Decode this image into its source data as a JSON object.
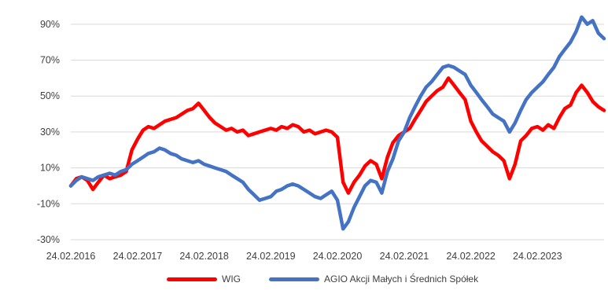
{
  "chart_data": {
    "type": "line",
    "title": "",
    "xlabel": "",
    "ylabel": "",
    "y_unit": "%",
    "ylim": [
      -30,
      100
    ],
    "y_ticks": [
      90,
      70,
      50,
      30,
      10,
      -10,
      -30
    ],
    "y_tick_labels": [
      "90%",
      "70%",
      "50%",
      "30%",
      "10%",
      "-10%",
      "-30%"
    ],
    "x_range": [
      "2016-02-24",
      "2024-02-24"
    ],
    "x_ticks": [
      "2016-02-24",
      "2017-02-24",
      "2018-02-24",
      "2019-02-24",
      "2020-02-24",
      "2021-02-24",
      "2022-02-24",
      "2023-02-24"
    ],
    "x_tick_labels": [
      "24.02.2016",
      "24.02.2017",
      "24.02.2018",
      "24.02.2019",
      "24.02.2020",
      "24.02.2021",
      "24.02.2022",
      "24.02.2023"
    ],
    "grid": true,
    "legend_position": "bottom",
    "series": [
      {
        "name": "WIG",
        "color": "#ff0000",
        "points": [
          [
            "2016-02-24",
            0
          ],
          [
            "2016-03-25",
            4
          ],
          [
            "2016-04-24",
            5
          ],
          [
            "2016-05-25",
            3
          ],
          [
            "2016-06-24",
            -2
          ],
          [
            "2016-07-24",
            2
          ],
          [
            "2016-08-24",
            6
          ],
          [
            "2016-09-24",
            4
          ],
          [
            "2016-10-24",
            5
          ],
          [
            "2016-11-24",
            6
          ],
          [
            "2016-12-24",
            8
          ],
          [
            "2017-01-24",
            20
          ],
          [
            "2017-02-24",
            26
          ],
          [
            "2017-03-26",
            31
          ],
          [
            "2017-04-24",
            33
          ],
          [
            "2017-05-25",
            32
          ],
          [
            "2017-06-24",
            34
          ],
          [
            "2017-07-24",
            36
          ],
          [
            "2017-08-24",
            37
          ],
          [
            "2017-09-24",
            38
          ],
          [
            "2017-10-24",
            40
          ],
          [
            "2017-11-24",
            42
          ],
          [
            "2017-12-24",
            43
          ],
          [
            "2018-01-24",
            46
          ],
          [
            "2018-02-24",
            42
          ],
          [
            "2018-03-26",
            38
          ],
          [
            "2018-04-24",
            35
          ],
          [
            "2018-05-25",
            33
          ],
          [
            "2018-06-24",
            31
          ],
          [
            "2018-07-24",
            32
          ],
          [
            "2018-08-24",
            30
          ],
          [
            "2018-09-24",
            31
          ],
          [
            "2018-10-24",
            28
          ],
          [
            "2018-11-24",
            29
          ],
          [
            "2018-12-24",
            30
          ],
          [
            "2019-01-24",
            31
          ],
          [
            "2019-02-24",
            32
          ],
          [
            "2019-03-26",
            31
          ],
          [
            "2019-04-24",
            33
          ],
          [
            "2019-05-25",
            32
          ],
          [
            "2019-06-24",
            34
          ],
          [
            "2019-07-24",
            33
          ],
          [
            "2019-08-24",
            30
          ],
          [
            "2019-09-24",
            31
          ],
          [
            "2019-10-24",
            29
          ],
          [
            "2019-11-24",
            30
          ],
          [
            "2019-12-24",
            31
          ],
          [
            "2020-01-24",
            30
          ],
          [
            "2020-02-24",
            27
          ],
          [
            "2020-03-26",
            2
          ],
          [
            "2020-04-24",
            -4
          ],
          [
            "2020-05-25",
            2
          ],
          [
            "2020-06-24",
            6
          ],
          [
            "2020-07-24",
            11
          ],
          [
            "2020-08-24",
            14
          ],
          [
            "2020-09-24",
            12
          ],
          [
            "2020-10-24",
            4
          ],
          [
            "2020-11-24",
            16
          ],
          [
            "2020-12-24",
            24
          ],
          [
            "2021-01-24",
            28
          ],
          [
            "2021-02-24",
            30
          ],
          [
            "2021-03-26",
            32
          ],
          [
            "2021-04-24",
            37
          ],
          [
            "2021-05-25",
            42
          ],
          [
            "2021-06-24",
            47
          ],
          [
            "2021-07-24",
            50
          ],
          [
            "2021-08-24",
            53
          ],
          [
            "2021-09-24",
            55
          ],
          [
            "2021-10-24",
            60
          ],
          [
            "2021-11-24",
            56
          ],
          [
            "2021-12-24",
            52
          ],
          [
            "2022-01-24",
            48
          ],
          [
            "2022-02-24",
            36
          ],
          [
            "2022-03-26",
            30
          ],
          [
            "2022-04-24",
            25
          ],
          [
            "2022-05-25",
            22
          ],
          [
            "2022-06-24",
            19
          ],
          [
            "2022-07-24",
            17
          ],
          [
            "2022-08-24",
            14
          ],
          [
            "2022-09-24",
            4
          ],
          [
            "2022-10-24",
            12
          ],
          [
            "2022-11-24",
            25
          ],
          [
            "2022-12-24",
            28
          ],
          [
            "2023-01-24",
            32
          ],
          [
            "2023-02-24",
            33
          ],
          [
            "2023-03-26",
            31
          ],
          [
            "2023-04-24",
            34
          ],
          [
            "2023-05-25",
            32
          ],
          [
            "2023-06-24",
            38
          ],
          [
            "2023-07-24",
            43
          ],
          [
            "2023-08-24",
            45
          ],
          [
            "2023-09-24",
            52
          ],
          [
            "2023-10-24",
            56
          ],
          [
            "2023-11-24",
            52
          ],
          [
            "2023-12-24",
            47
          ],
          [
            "2024-01-24",
            44
          ],
          [
            "2024-02-24",
            42
          ]
        ]
      },
      {
        "name": "AGIO Akcji Małych i Średnich Spółek",
        "color": "#4472c4",
        "points": [
          [
            "2016-02-24",
            0
          ],
          [
            "2016-03-25",
            3
          ],
          [
            "2016-04-24",
            5
          ],
          [
            "2016-05-25",
            4
          ],
          [
            "2016-06-24",
            3
          ],
          [
            "2016-07-24",
            5
          ],
          [
            "2016-08-24",
            6
          ],
          [
            "2016-09-24",
            7
          ],
          [
            "2016-10-24",
            6
          ],
          [
            "2016-11-24",
            8
          ],
          [
            "2016-12-24",
            9
          ],
          [
            "2017-01-24",
            12
          ],
          [
            "2017-02-24",
            14
          ],
          [
            "2017-03-26",
            16
          ],
          [
            "2017-04-24",
            18
          ],
          [
            "2017-05-25",
            19
          ],
          [
            "2017-06-24",
            21
          ],
          [
            "2017-07-24",
            20
          ],
          [
            "2017-08-24",
            18
          ],
          [
            "2017-09-24",
            17
          ],
          [
            "2017-10-24",
            15
          ],
          [
            "2017-11-24",
            14
          ],
          [
            "2017-12-24",
            13
          ],
          [
            "2018-01-24",
            14
          ],
          [
            "2018-02-24",
            12
          ],
          [
            "2018-03-26",
            11
          ],
          [
            "2018-04-24",
            10
          ],
          [
            "2018-05-25",
            9
          ],
          [
            "2018-06-24",
            8
          ],
          [
            "2018-07-24",
            6
          ],
          [
            "2018-08-24",
            4
          ],
          [
            "2018-09-24",
            2
          ],
          [
            "2018-10-24",
            -2
          ],
          [
            "2018-11-24",
            -5
          ],
          [
            "2018-12-24",
            -8
          ],
          [
            "2019-01-24",
            -7
          ],
          [
            "2019-02-24",
            -6
          ],
          [
            "2019-03-26",
            -3
          ],
          [
            "2019-04-24",
            -2
          ],
          [
            "2019-05-25",
            0
          ],
          [
            "2019-06-24",
            1
          ],
          [
            "2019-07-24",
            0
          ],
          [
            "2019-08-24",
            -2
          ],
          [
            "2019-09-24",
            -4
          ],
          [
            "2019-10-24",
            -6
          ],
          [
            "2019-11-24",
            -7
          ],
          [
            "2019-12-24",
            -5
          ],
          [
            "2020-01-24",
            -3
          ],
          [
            "2020-02-24",
            -8
          ],
          [
            "2020-03-26",
            -24
          ],
          [
            "2020-04-24",
            -20
          ],
          [
            "2020-05-25",
            -12
          ],
          [
            "2020-06-24",
            -6
          ],
          [
            "2020-07-24",
            0
          ],
          [
            "2020-08-24",
            3
          ],
          [
            "2020-09-24",
            2
          ],
          [
            "2020-10-24",
            -4
          ],
          [
            "2020-11-24",
            8
          ],
          [
            "2020-12-24",
            15
          ],
          [
            "2021-01-24",
            25
          ],
          [
            "2021-02-24",
            30
          ],
          [
            "2021-03-26",
            38
          ],
          [
            "2021-04-24",
            44
          ],
          [
            "2021-05-25",
            50
          ],
          [
            "2021-06-24",
            55
          ],
          [
            "2021-07-24",
            58
          ],
          [
            "2021-08-24",
            62
          ],
          [
            "2021-09-24",
            66
          ],
          [
            "2021-10-24",
            67
          ],
          [
            "2021-11-24",
            66
          ],
          [
            "2021-12-24",
            64
          ],
          [
            "2022-01-24",
            62
          ],
          [
            "2022-02-24",
            56
          ],
          [
            "2022-03-26",
            52
          ],
          [
            "2022-04-24",
            48
          ],
          [
            "2022-05-25",
            44
          ],
          [
            "2022-06-24",
            40
          ],
          [
            "2022-07-24",
            38
          ],
          [
            "2022-08-24",
            36
          ],
          [
            "2022-09-24",
            30
          ],
          [
            "2022-10-24",
            35
          ],
          [
            "2022-11-24",
            42
          ],
          [
            "2022-12-24",
            48
          ],
          [
            "2023-01-24",
            52
          ],
          [
            "2023-02-24",
            55
          ],
          [
            "2023-03-26",
            58
          ],
          [
            "2023-04-24",
            62
          ],
          [
            "2023-05-25",
            66
          ],
          [
            "2023-06-24",
            72
          ],
          [
            "2023-07-24",
            76
          ],
          [
            "2023-08-24",
            80
          ],
          [
            "2023-09-24",
            86
          ],
          [
            "2023-10-24",
            94
          ],
          [
            "2023-11-24",
            90
          ],
          [
            "2023-12-24",
            92
          ],
          [
            "2024-01-24",
            85
          ],
          [
            "2024-02-24",
            82
          ]
        ]
      }
    ]
  }
}
